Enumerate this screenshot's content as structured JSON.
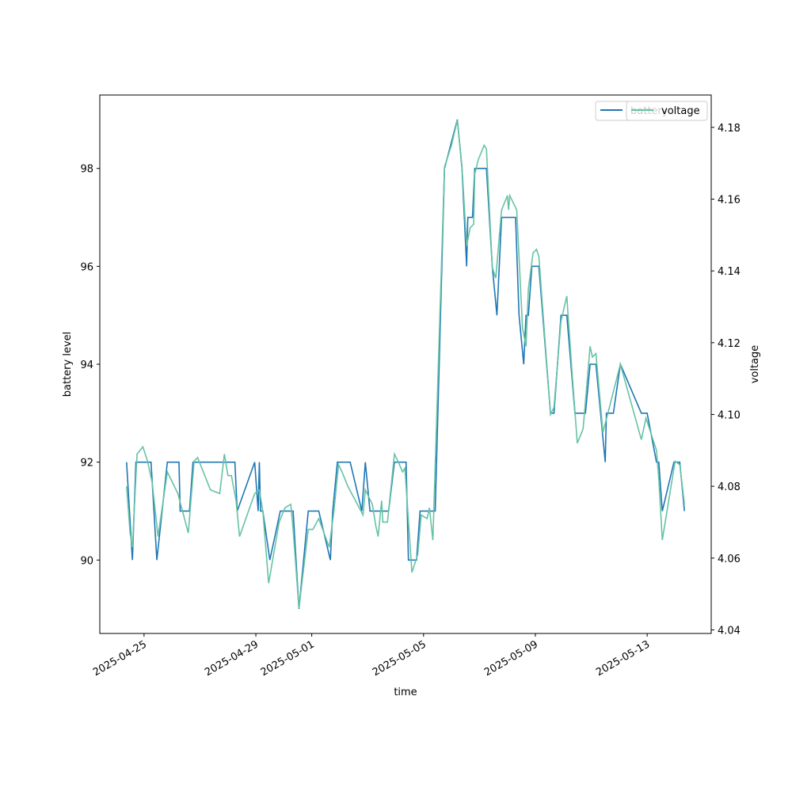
{
  "chart_data": {
    "type": "line",
    "x_label": "time",
    "y_label": "battery level",
    "y2_label": "voltage",
    "legend": "upper right",
    "xlim": [
      "2025-04-23T10:00",
      "2025-05-15T07:00"
    ],
    "xticks": [
      "2025-04-25",
      "2025-04-29",
      "2025-05-01",
      "2025-05-05",
      "2025-05-09",
      "2025-05-13"
    ],
    "ylim": [
      88.5,
      99.5
    ],
    "yticks": [
      90,
      92,
      94,
      96,
      98
    ],
    "y2lim": [
      4.039,
      4.189
    ],
    "y2ticks": [
      4.04,
      4.06,
      4.08,
      {
        "value": 4.1,
        "label": "4.10"
      },
      4.12,
      4.14,
      4.16,
      4.18
    ],
    "series": [
      {
        "name": "battery",
        "color": "#1f77b4",
        "x": [
          "2025-04-24T09:00",
          "2025-04-24T14:00",
          "2025-04-24T17:00",
          "2025-04-25T06:00",
          "2025-04-25T11:00",
          "2025-04-25T20:00",
          "2025-04-26T06:00",
          "2025-04-26T07:00",
          "2025-04-26T15:00",
          "2025-04-26T18:00",
          "2025-04-28T06:00",
          "2025-04-28T08:00",
          "2025-04-28T23:00",
          "2025-04-29T02:00",
          "2025-04-29T03:00",
          "2025-04-29T04:00",
          "2025-04-29T06:00",
          "2025-04-29T12:00",
          "2025-04-29T21:00",
          "2025-04-30T08:00",
          "2025-04-30T13:00",
          "2025-04-30T21:00",
          "2025-05-01T06:00",
          "2025-05-01T16:00",
          "2025-05-01T18:00",
          "2025-05-01T22:00",
          "2025-05-02T09:00",
          "2025-05-02T19:00",
          "2025-05-02T22:00",
          "2025-05-03T02:00",
          "2025-05-03T18:00",
          "2025-05-03T23:00",
          "2025-05-04T09:00",
          "2025-05-04T11:00",
          "2025-05-04T18:00",
          "2025-05-04T21:00",
          "2025-05-05T10:00",
          "2025-05-05T18:00",
          "2025-05-06T05:00",
          "2025-05-06T09:00",
          "2025-05-06T13:00",
          "2025-05-06T14:00",
          "2025-05-06T18:00",
          "2025-05-06T20:00",
          "2025-05-07T06:00",
          "2025-05-07T11:00",
          "2025-05-07T15:00",
          "2025-05-07T19:00",
          "2025-05-08T07:00",
          "2025-05-08T10:00",
          "2025-05-08T14:00",
          "2025-05-08T16:00",
          "2025-05-08T18:00",
          "2025-05-08T21:00",
          "2025-05-09T03:00",
          "2025-05-09T13:00",
          "2025-05-09T16:00",
          "2025-05-09T22:00",
          "2025-05-10T03:00",
          "2025-05-10T10:00",
          "2025-05-10T19:00",
          "2025-05-10T23:00",
          "2025-05-11T04:00",
          "2025-05-11T12:00",
          "2025-05-11T13:00",
          "2025-05-11T19:00",
          "2025-05-12T01:00",
          "2025-05-12T19:00",
          "2025-05-13T00:00",
          "2025-05-13T08:00",
          "2025-05-13T10:00",
          "2025-05-13T13:00",
          "2025-05-13T23:00",
          "2025-05-14T04:00",
          "2025-05-14T08:00"
        ],
        "values": [
          92,
          90,
          92,
          92,
          90,
          92,
          92,
          91,
          91,
          92,
          92,
          91,
          92,
          91,
          92,
          91,
          91,
          90,
          91,
          91,
          89,
          91,
          91,
          90,
          91,
          92,
          92,
          91,
          92,
          91,
          91,
          92,
          92,
          90,
          90,
          91,
          91,
          98,
          99,
          98,
          96,
          97,
          97,
          98,
          98,
          96,
          95,
          97,
          97,
          95,
          94,
          95,
          95,
          96,
          96,
          93,
          93,
          95,
          95,
          93,
          93,
          94,
          94,
          92,
          93,
          93,
          94,
          93,
          93,
          92,
          92,
          91,
          92,
          92,
          91
        ]
      },
      {
        "name": "voltage",
        "color": "#66c2a5",
        "axis": "y2",
        "x": [
          "2025-04-24T09:00",
          "2025-04-24T12:00",
          "2025-04-24T14:00",
          "2025-04-24T18:00",
          "2025-04-24T23:00",
          "2025-04-25T03:00",
          "2025-04-25T07:00",
          "2025-04-25T12:00",
          "2025-04-25T20:00",
          "2025-04-26T05:00",
          "2025-04-26T14:00",
          "2025-04-26T19:00",
          "2025-04-26T22:00",
          "2025-04-27T09:00",
          "2025-04-27T17:00",
          "2025-04-27T21:00",
          "2025-04-28T00:00",
          "2025-04-28T03:00",
          "2025-04-28T07:00",
          "2025-04-28T10:00",
          "2025-04-28T23:00",
          "2025-04-29T03:00",
          "2025-04-29T06:00",
          "2025-04-29T11:00",
          "2025-04-29T20:00",
          "2025-04-30T01:00",
          "2025-04-30T06:00",
          "2025-04-30T08:00",
          "2025-04-30T13:00",
          "2025-04-30T21:00",
          "2025-05-01T01:00",
          "2025-05-01T06:00",
          "2025-05-01T15:00",
          "2025-05-01T19:00",
          "2025-05-01T23:00",
          "2025-05-02T02:00",
          "2025-05-02T07:00",
          "2025-05-02T20:00",
          "2025-05-02T22:00",
          "2025-05-03T04:00",
          "2025-05-03T07:00",
          "2025-05-03T09:00",
          "2025-05-03T12:00",
          "2025-05-03T13:00",
          "2025-05-03T17:00",
          "2025-05-03T23:00",
          "2025-05-04T02:00",
          "2025-05-04T06:00",
          "2025-05-04T08:00",
          "2025-05-04T14:00",
          "2025-05-04T19:00",
          "2025-05-04T22:00",
          "2025-05-05T03:00",
          "2025-05-05T05:00",
          "2025-05-05T08:00",
          "2025-05-05T18:00",
          "2025-05-06T00:00",
          "2025-05-06T05:00",
          "2025-05-06T09:00",
          "2025-05-06T13:00",
          "2025-05-06T16:00",
          "2025-05-06T19:00",
          "2025-05-06T20:00",
          "2025-05-06T23:00",
          "2025-05-07T04:00",
          "2025-05-07T06:00",
          "2025-05-07T11:00",
          "2025-05-07T14:00",
          "2025-05-07T19:00",
          "2025-05-08T00:00",
          "2025-05-08T01:00",
          "2025-05-08T02:00",
          "2025-05-08T08:00",
          "2025-05-08T13:00",
          "2025-05-08T16:00",
          "2025-05-08T18:00",
          "2025-05-08T22:00",
          "2025-05-09T01:00",
          "2025-05-09T03:00",
          "2025-05-09T13:00",
          "2025-05-09T16:00",
          "2025-05-09T22:00",
          "2025-05-10T03:00",
          "2025-05-10T07:00",
          "2025-05-10T12:00",
          "2025-05-10T17:00",
          "2025-05-10T23:00",
          "2025-05-11T01:00",
          "2025-05-11T04:00",
          "2025-05-11T10:00",
          "2025-05-11T14:00",
          "2025-05-12T01:00",
          "2025-05-12T19:00",
          "2025-05-12T23:00",
          "2025-05-13T08:00",
          "2025-05-13T10:00",
          "2025-05-13T13:00",
          "2025-05-14T00:00",
          "2025-05-14T04:00",
          "2025-05-14T08:00"
        ],
        "values": [
          4.08,
          4.067,
          4.063,
          4.089,
          4.091,
          4.087,
          4.081,
          4.066,
          4.084,
          4.078,
          4.067,
          4.087,
          4.088,
          4.079,
          4.078,
          4.089,
          4.083,
          4.083,
          4.076,
          4.066,
          4.078,
          4.079,
          4.073,
          4.053,
          4.07,
          4.074,
          4.075,
          4.068,
          4.046,
          4.068,
          4.068,
          4.071,
          4.063,
          4.073,
          4.086,
          4.084,
          4.08,
          4.072,
          4.079,
          4.075,
          4.069,
          4.066,
          4.076,
          4.07,
          4.07,
          4.089,
          4.087,
          4.084,
          4.085,
          4.056,
          4.061,
          4.072,
          4.071,
          4.074,
          4.065,
          4.169,
          4.175,
          4.182,
          4.169,
          4.147,
          4.152,
          4.153,
          4.167,
          4.171,
          4.175,
          4.174,
          4.141,
          4.138,
          4.157,
          4.161,
          4.157,
          4.161,
          4.157,
          4.124,
          4.119,
          4.135,
          4.145,
          4.146,
          4.144,
          4.1,
          4.102,
          4.126,
          4.133,
          4.114,
          4.092,
          4.096,
          4.119,
          4.116,
          4.117,
          4.095,
          4.1,
          4.114,
          4.093,
          4.099,
          4.09,
          4.082,
          4.065,
          4.087,
          4.086,
          4.075
        ]
      }
    ]
  }
}
